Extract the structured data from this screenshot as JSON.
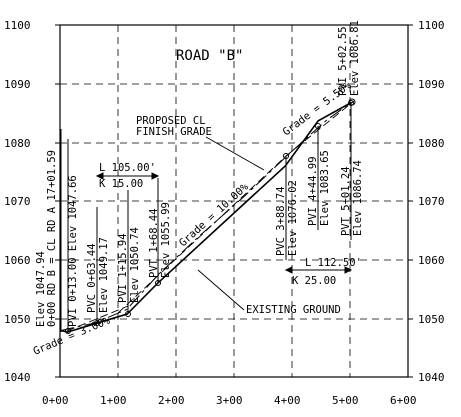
{
  "title": "ROAD \"B\"",
  "y_ticks": [
    "1100",
    "1090",
    "1080",
    "1070",
    "1060",
    "1050",
    "1040"
  ],
  "x_ticks": [
    "0+00",
    "1+00",
    "2+00",
    "3+00",
    "4+00",
    "5+00",
    "6+00"
  ],
  "labels": {
    "proposed_cl_1": "PROPOSED CL",
    "proposed_cl_2": "FINISH GRADE",
    "existing": "EXISTING GROUND",
    "grade_left": "Grade = 3.00%",
    "grade_mid": "Grade = 10.00%",
    "grade_right": "Grade = 5.50%",
    "vc1_length": "L 105.00'",
    "vc1_k": "K 15.00",
    "vc2_length": "L 112.50'",
    "vc2_k": "K 25.00",
    "elev_1047_94": "Elev 1047.94",
    "rd_b_ref": "0+00 RD B = CL RD A 17+01.59",
    "pvi_0_13": "PVI 0+13.00 Elev 1047.66",
    "pvc_0_63": "PVC 0+63.44",
    "elev_1049_17": "Elev 1049.17",
    "pvi_1_15": "PVI 1+15.94",
    "elev_1050_74": "Elev 1050.74",
    "pvt_1_68": "PVT 1+68.44",
    "elev_1055_99": "Elev 1055.99",
    "pvc_3_88": "PVC 3+88.74",
    "elev_1076_02": "Elev 1076.02",
    "pvi_4_44": "PVI 4+44.99",
    "elev_1083_65": "Elev 1083.65",
    "pvt_5_01": "PVT 5+01.24",
    "elev_1086_74": "Elev 1086.74",
    "pvi_5_02": "PVI 5+02.55",
    "elev_1086_81": "Elev 1086.81"
  },
  "chart_data": {
    "type": "line",
    "title": "ROAD \"B\"",
    "x_ticks": [
      "0+00",
      "1+00",
      "2+00",
      "3+00",
      "4+00",
      "5+00",
      "6+00"
    ],
    "xlim": [
      0,
      600
    ],
    "ylim": [
      1040,
      1100
    ],
    "grid": true,
    "series": [
      {
        "name": "PROPOSED CL FINISH GRADE",
        "x": [
          0,
          13,
          63.44,
          115.94,
          168.44,
          388.74,
          444.99,
          501.24,
          502.55
        ],
        "y": [
          1047.94,
          1047.66,
          1049.17,
          1050.74,
          1055.99,
          1076.02,
          1083.65,
          1086.74,
          1086.81
        ]
      },
      {
        "name": "EXISTING GROUND",
        "x": [
          0,
          60,
          115,
          170,
          240,
          320,
          400,
          460,
          502.55
        ],
        "y": [
          1047.9,
          1049.2,
          1051.5,
          1057.5,
          1064.0,
          1071.0,
          1078.5,
          1083.8,
          1086.8
        ]
      }
    ]
  }
}
